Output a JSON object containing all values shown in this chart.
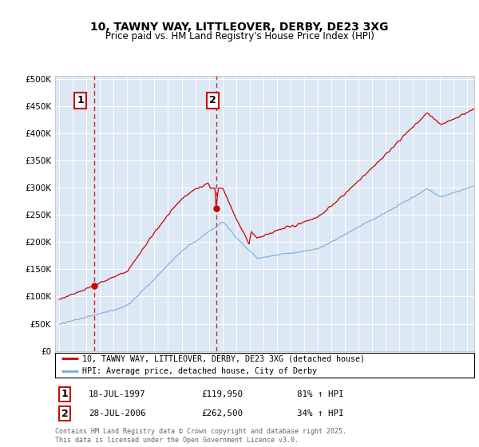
{
  "title": "10, TAWNY WAY, LITTLEOVER, DERBY, DE23 3XG",
  "subtitle": "Price paid vs. HM Land Registry's House Price Index (HPI)",
  "legend_line1": "10, TAWNY WAY, LITTLEOVER, DERBY, DE23 3XG (detached house)",
  "legend_line2": "HPI: Average price, detached house, City of Derby",
  "annotation1_label": "1",
  "annotation1_date": "18-JUL-1997",
  "annotation1_price": "£119,950",
  "annotation1_hpi": "81% ↑ HPI",
  "annotation1_year": 1997.55,
  "annotation1_value": 119950,
  "annotation2_label": "2",
  "annotation2_date": "28-JUL-2006",
  "annotation2_price": "£262,500",
  "annotation2_hpi": "34% ↑ HPI",
  "annotation2_year": 2006.57,
  "annotation2_value": 262500,
  "footer": "Contains HM Land Registry data © Crown copyright and database right 2025.\nThis data is licensed under the Open Government Licence v3.0.",
  "ylim": [
    0,
    500000
  ],
  "xlim_start": 1994.7,
  "xlim_end": 2025.5,
  "hpi_color": "#7aabdb",
  "price_color": "#cc0000",
  "background_color": "#dde8f5",
  "plot_bg_color": "#dde8f5"
}
